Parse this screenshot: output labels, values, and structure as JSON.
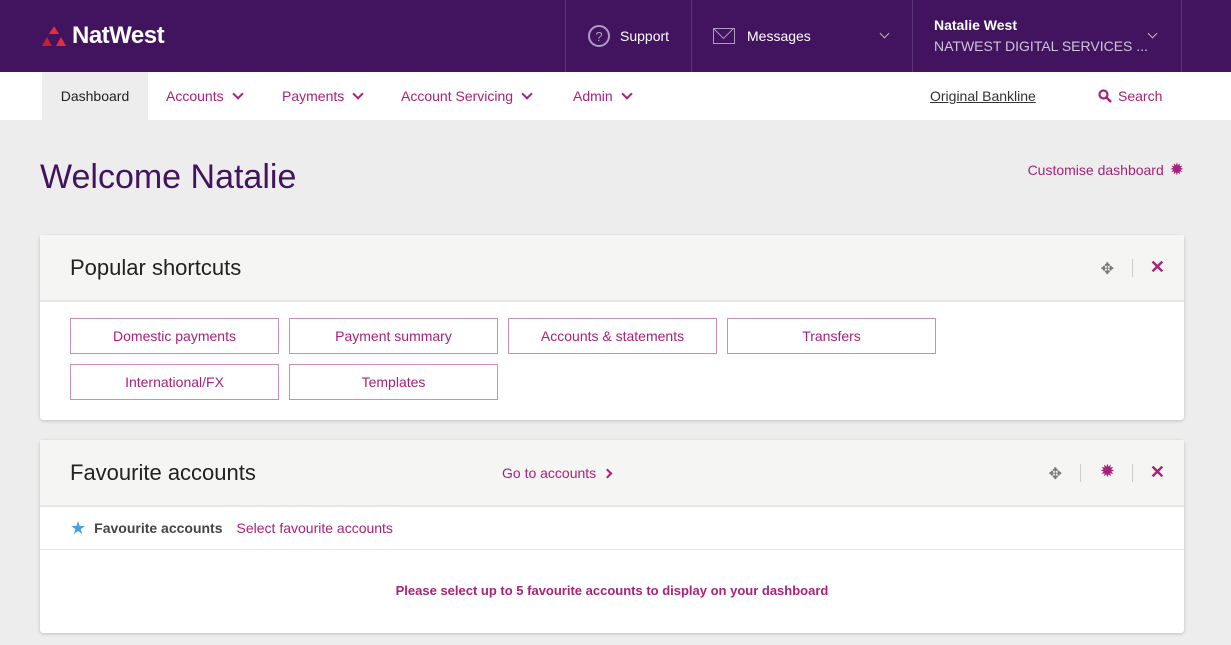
{
  "header": {
    "brand": "NatWest",
    "support": "Support",
    "messages": "Messages",
    "user_name": "Natalie West",
    "org": "NATWEST DIGITAL SERVICES ..."
  },
  "nav": {
    "items": [
      "Dashboard",
      "Accounts",
      "Payments",
      "Account Servicing",
      "Admin"
    ],
    "original": "Original Bankline",
    "search": "Search"
  },
  "page": {
    "title": "Welcome Natalie",
    "customise": "Customise dashboard"
  },
  "shortcuts": {
    "title": "Popular shortcuts",
    "buttons": [
      "Domestic payments",
      "Payment summary",
      "Accounts & statements",
      "Transfers",
      "International/FX",
      "Templates"
    ]
  },
  "favourites": {
    "title": "Favourite accounts",
    "go": "Go to accounts",
    "label": "Favourite accounts",
    "select": "Select favourite accounts",
    "empty": "Please select up to 5 favourite accounts to display on your dashboard"
  },
  "colors": {
    "header": "#42145f",
    "accent": "#a8217a"
  }
}
